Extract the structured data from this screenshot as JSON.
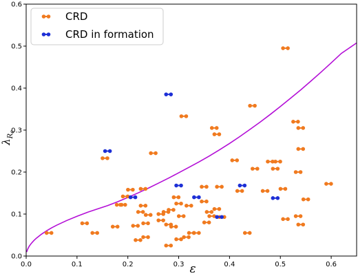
{
  "chart_data": {
    "type": "scatter",
    "xlabel": "ε",
    "ylabel": "λ",
    "ylabel_sub": "R",
    "ylabel_subsub": "e",
    "xlim": [
      0.0,
      0.65
    ],
    "ylim": [
      0.0,
      0.6
    ],
    "xticks": [
      "0.0",
      "0.1",
      "0.2",
      "0.3",
      "0.4",
      "0.5",
      "0.6"
    ],
    "xtick_values": [
      0.0,
      0.1,
      0.2,
      0.3,
      0.4,
      0.5,
      0.6
    ],
    "yticks": [
      "0.0",
      "0.1",
      "0.2",
      "0.3",
      "0.4",
      "0.5",
      "0.6"
    ],
    "ytick_values": [
      0.0,
      0.1,
      0.2,
      0.3,
      0.4,
      0.5,
      0.6
    ],
    "grid": false,
    "legend_position": "top-left",
    "curve": {
      "color": "#b30ed6",
      "points": [
        [
          0.001,
          0.0095
        ],
        [
          0.003,
          0.0164
        ],
        [
          0.006,
          0.0232
        ],
        [
          0.01,
          0.03
        ],
        [
          0.015,
          0.0367
        ],
        [
          0.02,
          0.0424
        ],
        [
          0.03,
          0.052
        ],
        [
          0.04,
          0.06
        ],
        [
          0.05,
          0.067
        ],
        [
          0.06,
          0.0734
        ],
        [
          0.08,
          0.0848
        ],
        [
          0.1,
          0.0948
        ],
        [
          0.12,
          0.1039
        ],
        [
          0.14,
          0.1122
        ],
        [
          0.16,
          0.12
        ],
        [
          0.18,
          0.1293
        ],
        [
          0.2,
          0.1395
        ],
        [
          0.22,
          0.1503
        ],
        [
          0.24,
          0.1615
        ],
        [
          0.26,
          0.1734
        ],
        [
          0.28,
          0.1856
        ],
        [
          0.3,
          0.1982
        ],
        [
          0.32,
          0.2111
        ],
        [
          0.34,
          0.2242
        ],
        [
          0.36,
          0.2381
        ],
        [
          0.38,
          0.2528
        ],
        [
          0.4,
          0.2682
        ],
        [
          0.42,
          0.2845
        ],
        [
          0.44,
          0.3014
        ],
        [
          0.46,
          0.3189
        ],
        [
          0.48,
          0.3372
        ],
        [
          0.5,
          0.3561
        ],
        [
          0.52,
          0.3757
        ],
        [
          0.54,
          0.3958
        ],
        [
          0.56,
          0.4166
        ],
        [
          0.58,
          0.4381
        ],
        [
          0.6,
          0.4601
        ],
        [
          0.62,
          0.4827
        ],
        [
          0.65,
          0.5076
        ]
      ]
    },
    "series": [
      {
        "name": "CRD",
        "color": "#f07a1f",
        "points": [
          [
            0.045,
            0.055
          ],
          [
            0.115,
            0.078
          ],
          [
            0.135,
            0.055
          ],
          [
            0.155,
            0.233
          ],
          [
            0.175,
            0.07
          ],
          [
            0.183,
            0.122
          ],
          [
            0.19,
            0.122
          ],
          [
            0.195,
            0.142
          ],
          [
            0.205,
            0.158
          ],
          [
            0.215,
            0.072
          ],
          [
            0.22,
            0.038
          ],
          [
            0.225,
            0.105
          ],
          [
            0.23,
            0.16
          ],
          [
            0.23,
            0.12
          ],
          [
            0.235,
            0.078
          ],
          [
            0.235,
            0.045
          ],
          [
            0.24,
            0.098
          ],
          [
            0.25,
            0.245
          ],
          [
            0.265,
            0.1
          ],
          [
            0.265,
            0.085
          ],
          [
            0.275,
            0.105
          ],
          [
            0.28,
            0.075
          ],
          [
            0.28,
            0.025
          ],
          [
            0.285,
            0.11
          ],
          [
            0.29,
            0.07
          ],
          [
            0.295,
            0.14
          ],
          [
            0.3,
            0.125
          ],
          [
            0.3,
            0.04
          ],
          [
            0.305,
            0.095
          ],
          [
            0.31,
            0.333
          ],
          [
            0.315,
            0.045
          ],
          [
            0.32,
            0.12
          ],
          [
            0.325,
            0.055
          ],
          [
            0.335,
            0.055
          ],
          [
            0.35,
            0.165
          ],
          [
            0.35,
            0.13
          ],
          [
            0.355,
            0.08
          ],
          [
            0.36,
            0.105
          ],
          [
            0.365,
            0.095
          ],
          [
            0.37,
            0.305
          ],
          [
            0.375,
            0.29
          ],
          [
            0.375,
            0.112
          ],
          [
            0.38,
            0.165
          ],
          [
            0.385,
            0.093
          ],
          [
            0.41,
            0.228
          ],
          [
            0.42,
            0.155
          ],
          [
            0.435,
            0.055
          ],
          [
            0.445,
            0.358
          ],
          [
            0.45,
            0.208
          ],
          [
            0.47,
            0.155
          ],
          [
            0.48,
            0.225
          ],
          [
            0.49,
            0.208
          ],
          [
            0.495,
            0.225
          ],
          [
            0.505,
            0.16
          ],
          [
            0.51,
            0.495
          ],
          [
            0.51,
            0.088
          ],
          [
            0.53,
            0.32
          ],
          [
            0.535,
            0.2
          ],
          [
            0.535,
            0.095
          ],
          [
            0.54,
            0.305
          ],
          [
            0.54,
            0.255
          ],
          [
            0.54,
            0.075
          ],
          [
            0.55,
            0.135
          ],
          [
            0.595,
            0.172
          ]
        ]
      },
      {
        "name": "CRD in formation",
        "color": "#1d2fd6",
        "points": [
          [
            0.16,
            0.25
          ],
          [
            0.21,
            0.14
          ],
          [
            0.28,
            0.385
          ],
          [
            0.3,
            0.168
          ],
          [
            0.335,
            0.14
          ],
          [
            0.38,
            0.093
          ],
          [
            0.425,
            0.168
          ],
          [
            0.49,
            0.138
          ]
        ]
      }
    ]
  }
}
